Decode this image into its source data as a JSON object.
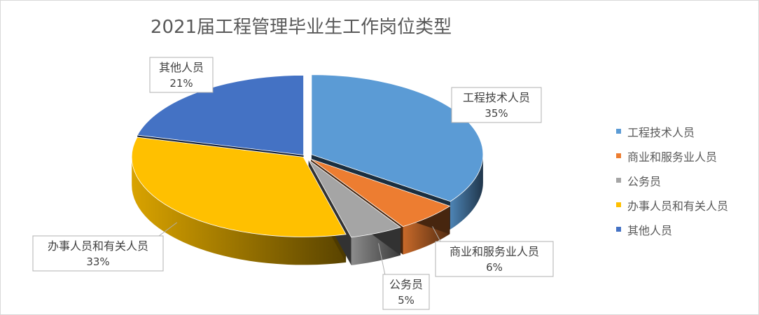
{
  "chart_data": {
    "type": "pie",
    "title": "2021届工程管理毕业生工作岗位类型",
    "categories": [
      "工程技术人员",
      "商业和服务业人员",
      "公务员",
      "办事人员和有关人员",
      "其他人员"
    ],
    "values": [
      35,
      6,
      5,
      33,
      21
    ],
    "labels": [
      "35%",
      "6%",
      "5%",
      "33%",
      "21%"
    ],
    "colors": [
      "#5B9BD5",
      "#ED7D31",
      "#A5A5A5",
      "#FFC000",
      "#4472C4"
    ],
    "legend_position": "right",
    "style": "3d-exploded"
  }
}
